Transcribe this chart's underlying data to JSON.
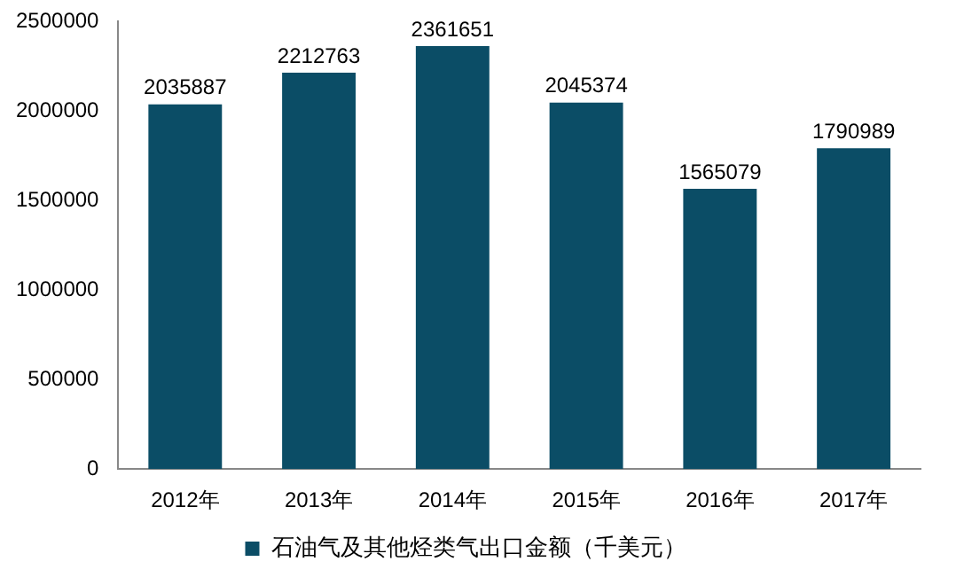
{
  "chart_data": {
    "type": "bar",
    "categories": [
      "2012年",
      "2013年",
      "2014年",
      "2015年",
      "2016年",
      "2017年"
    ],
    "series": [
      {
        "name": "石油气及其他烃类气出口金额（千美元）",
        "color": "#0b4d66",
        "values": [
          2035887,
          2212763,
          2361651,
          2045374,
          1565079,
          1790989
        ]
      }
    ],
    "ylim": [
      0,
      2500000
    ],
    "yticks": [
      0,
      500000,
      1000000,
      1500000,
      2000000,
      2500000
    ],
    "grid": false,
    "legend": "bottom",
    "data_labels": true
  }
}
